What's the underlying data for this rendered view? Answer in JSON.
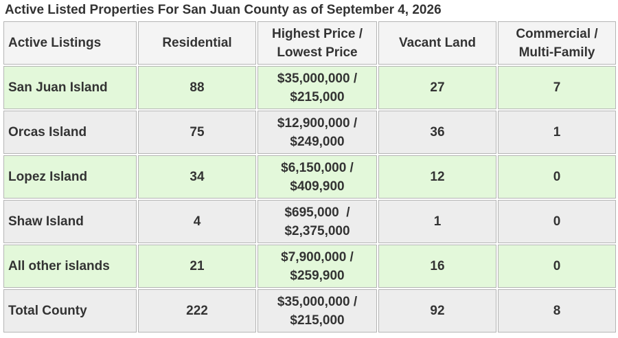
{
  "title": "Active Listed Properties For San Juan County as of September 4, 2026",
  "table": {
    "headers": [
      {
        "line1": "Active Listings",
        "line2": ""
      },
      {
        "line1": "Residential",
        "line2": ""
      },
      {
        "line1": "Highest Price /",
        "line2": "Lowest Price"
      },
      {
        "line1": "Vacant Land",
        "line2": ""
      },
      {
        "line1": "Commercial /",
        "line2": "Multi-Family"
      }
    ],
    "rows": [
      {
        "area": "San Juan Island",
        "residential": "88",
        "price_high": "$35,000,000 /",
        "price_low": "$215,000",
        "vacant_land": "27",
        "commercial": "7",
        "shade": "green"
      },
      {
        "area": "Orcas Island",
        "residential": "75",
        "price_high": "$12,900,000 /",
        "price_low": "$249,000",
        "vacant_land": "36",
        "commercial": "1",
        "shade": "gray"
      },
      {
        "area": "Lopez Island",
        "residential": "34",
        "price_high": "$6,150,000 /",
        "price_low": "$409,900",
        "vacant_land": "12",
        "commercial": "0",
        "shade": "green"
      },
      {
        "area": "Shaw Island",
        "residential": "4",
        "price_high": "$695,000  /",
        "price_low": "$2,375,000",
        "vacant_land": "1",
        "commercial": "0",
        "shade": "gray"
      },
      {
        "area": "All other islands",
        "residential": "21",
        "price_high": "$7,900,000 /",
        "price_low": "$259,900",
        "vacant_land": "16",
        "commercial": "0",
        "shade": "green"
      },
      {
        "area": "Total County",
        "residential": "222",
        "price_high": "$35,000,000 /",
        "price_low": "$215,000",
        "vacant_land": "92",
        "commercial": "8",
        "shade": "gray"
      }
    ]
  },
  "colors": {
    "green_row": "#e3f8da",
    "gray_row": "#ededed",
    "header_row": "#f4f4f4",
    "border": "#b4b4b4",
    "text": "#333333"
  }
}
